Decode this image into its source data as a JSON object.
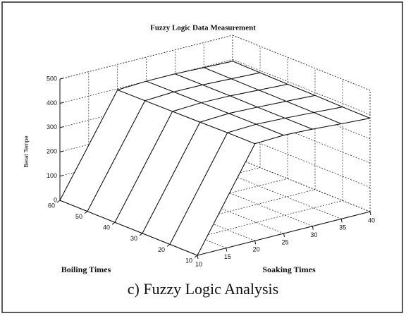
{
  "chart_data": {
    "type": "surface",
    "title": "Fuzzy Logic Data Measurement",
    "xlabel": "Soaking Times",
    "ylabel": "Boiling Times",
    "zlabel": "Berat Tempe",
    "caption": "c) Fuzzy Logic Analysis",
    "x": [
      10,
      20,
      25,
      30,
      35,
      40
    ],
    "y": [
      10,
      20,
      30,
      40,
      50,
      60
    ],
    "z": [
      [
        0,
        400,
        405,
        400,
        392,
        385
      ],
      [
        0,
        400,
        405,
        400,
        393,
        386
      ],
      [
        0,
        398,
        404,
        400,
        394,
        388
      ],
      [
        0,
        397,
        403,
        401,
        395,
        389
      ],
      [
        0,
        396,
        402,
        401,
        396,
        391
      ],
      [
        0,
        395,
        401,
        401,
        397,
        393
      ]
    ],
    "xlim": [
      10,
      40
    ],
    "ylim": [
      10,
      60
    ],
    "zlim": [
      0,
      500
    ],
    "xticks": [
      10,
      15,
      20,
      25,
      30,
      35,
      40
    ],
    "yticks": [
      10,
      20,
      30,
      40,
      50,
      60
    ],
    "zticks": [
      0,
      100,
      200,
      300,
      400,
      500
    ],
    "grid": true,
    "color": "#ffffff"
  }
}
